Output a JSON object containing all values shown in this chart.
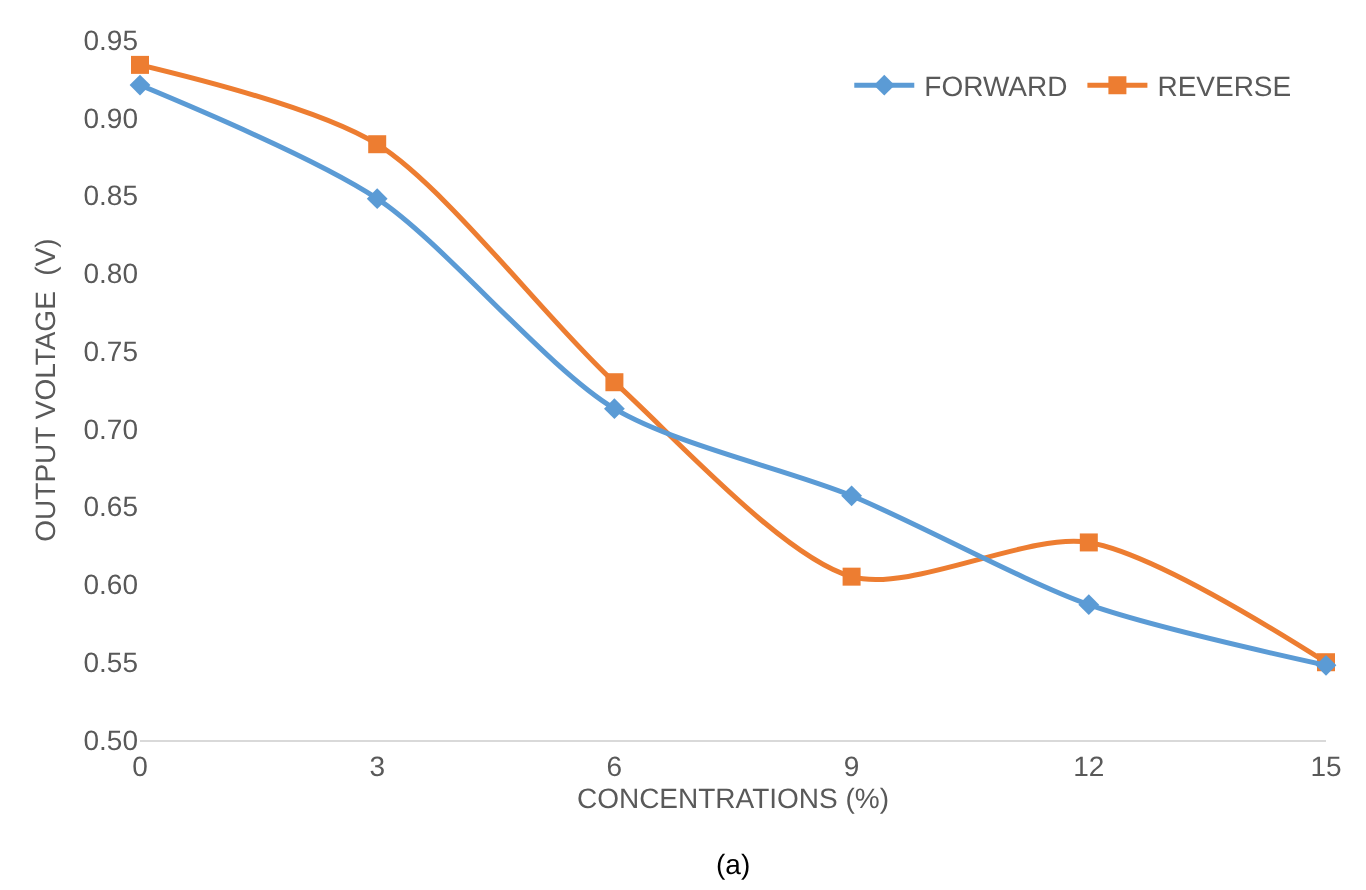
{
  "chart_data": {
    "type": "line",
    "xlabel": "CONCENTRATIONS (%)",
    "ylabel": "OUTPUT VOLTAGE  (V)",
    "x": [
      0,
      3,
      6,
      9,
      12,
      15
    ],
    "series": [
      {
        "name": "FORWARD",
        "color": "#5b9bd5",
        "marker": "diamond",
        "values": [
          0.921,
          0.848,
          0.713,
          0.657,
          0.587,
          0.548
        ]
      },
      {
        "name": "REVERSE",
        "color": "#ed7d31",
        "marker": "square",
        "values": [
          0.934,
          0.883,
          0.73,
          0.605,
          0.627,
          0.55
        ]
      }
    ],
    "xlim": [
      0,
      15
    ],
    "xticks": [
      0,
      3,
      6,
      9,
      12,
      15
    ],
    "ylim": [
      0.5,
      0.95
    ],
    "yticks": [
      {
        "value": 0.5,
        "label": "0.50"
      },
      {
        "value": 0.55,
        "label": "0.55"
      },
      {
        "value": 0.6,
        "label": "0.60"
      },
      {
        "value": 0.65,
        "label": "0.65"
      },
      {
        "value": 0.7,
        "label": "0.70"
      },
      {
        "value": 0.75,
        "label": "0.75"
      },
      {
        "value": 0.8,
        "label": "0.80"
      },
      {
        "value": 0.85,
        "label": "0.85"
      },
      {
        "value": 0.9,
        "label": "0.90"
      },
      {
        "value": 0.95,
        "label": "0.95"
      }
    ],
    "grid": false,
    "legend": "top right",
    "line_style": "solid",
    "annotations": [
      "(a)"
    ]
  }
}
